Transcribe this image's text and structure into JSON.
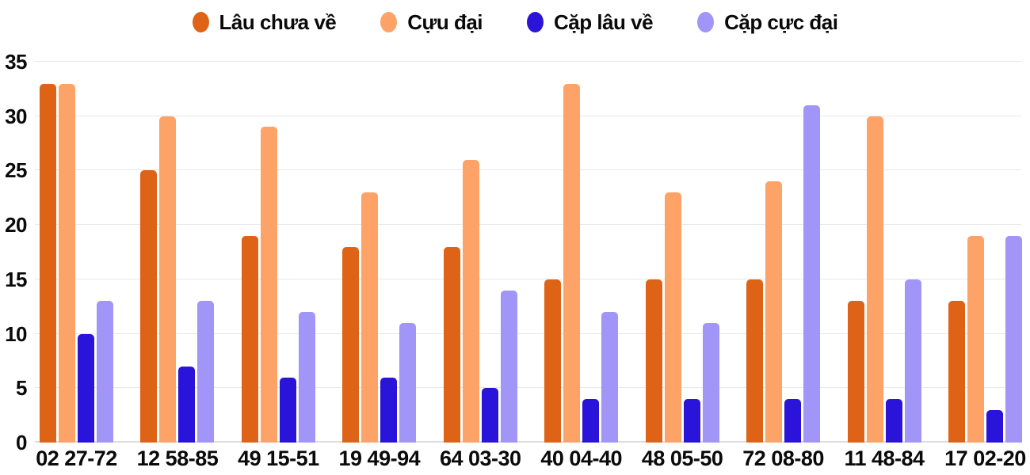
{
  "chart_data": {
    "type": "bar",
    "title": "",
    "xlabel": "",
    "ylabel": "",
    "categories": [
      "02 27-72",
      "12 58-85",
      "49 15-51",
      "19 49-94",
      "64 03-30",
      "40 04-40",
      "48 05-50",
      "72 08-80",
      "11 48-84",
      "17 02-20"
    ],
    "series": [
      {
        "name": "Lâu chưa về",
        "color": "#de6317",
        "values": [
          33,
          25,
          19,
          18,
          18,
          15,
          15,
          15,
          13,
          13
        ]
      },
      {
        "name": "Cựu đại",
        "color": "#fda368",
        "values": [
          33,
          30,
          29,
          23,
          26,
          33,
          23,
          24,
          30,
          19
        ]
      },
      {
        "name": "Cặp lâu về",
        "color": "#2a14da",
        "values": [
          10,
          7,
          6,
          6,
          5,
          4,
          4,
          4,
          4,
          3
        ]
      },
      {
        "name": "Cặp cực đại",
        "color": "#a195f7",
        "values": [
          13,
          13,
          12,
          11,
          14,
          12,
          11,
          31,
          15,
          19
        ]
      }
    ],
    "ylim": [
      0,
      35
    ],
    "yticks": [
      0,
      5,
      10,
      15,
      20,
      25,
      30,
      35
    ],
    "grid": true,
    "legend_position": "top"
  },
  "colors": {
    "grid": "#e8e8e8",
    "baseline": "#dcdcdc",
    "text": "#0a0a0a",
    "background": "#ffffff"
  }
}
